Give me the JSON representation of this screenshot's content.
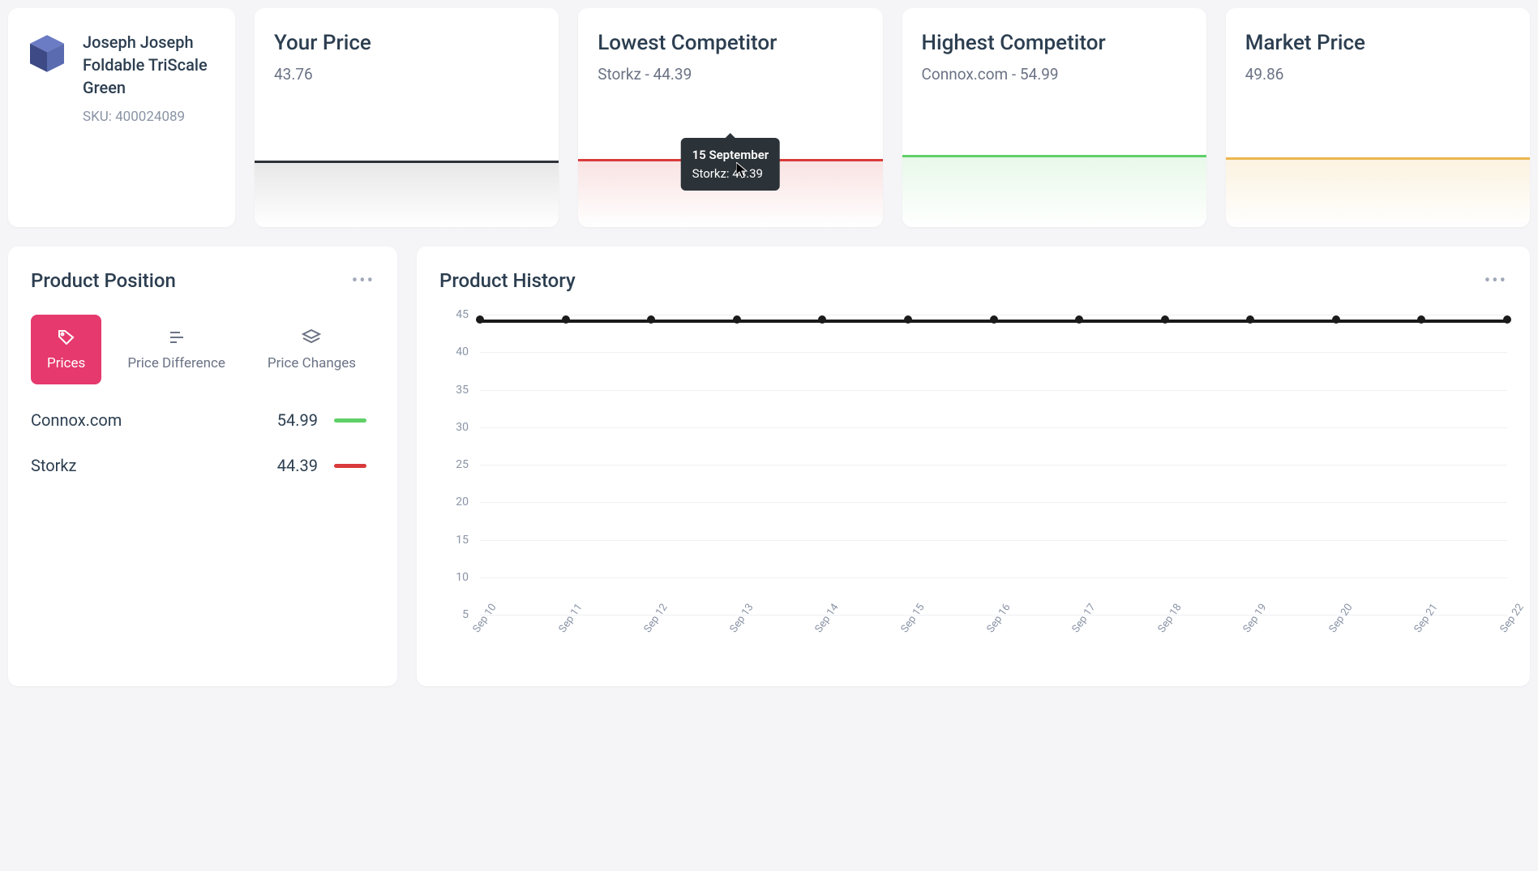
{
  "product": {
    "name": "Joseph Joseph Foldable TriScale Green",
    "sku_label": "SKU: 400024089",
    "icon_color_top": "#5a6bb0",
    "icon_color_side": "#3d4a85"
  },
  "price_cards": {
    "your_price": {
      "title": "Your Price",
      "value": "43.76",
      "line_color": "#2c3338",
      "fill_color": "rgba(120,120,120,0.18)",
      "line_top_pct": 32
    },
    "lowest": {
      "title": "Lowest Competitor",
      "value": "Storkz - 44.39",
      "line_color": "#d93a3a",
      "fill_color": "rgba(217,58,58,0.15)",
      "line_top_pct": 30
    },
    "highest": {
      "title": "Highest Competitor",
      "value": "Connox.com - 54.99",
      "line_color": "#5fd068",
      "fill_color": "rgba(95,208,104,0.15)",
      "line_top_pct": 26
    },
    "market": {
      "title": "Market Price",
      "value": "49.86",
      "line_color": "#eab64f",
      "fill_color": "rgba(234,182,79,0.18)",
      "line_top_pct": 28
    }
  },
  "tooltip": {
    "date": "15 September",
    "text": "Storkz: 44.39"
  },
  "position_panel": {
    "title": "Product Position",
    "tabs": {
      "prices": "Prices",
      "diff": "Price Difference",
      "changes": "Price Changes"
    },
    "active_tab_bg": "#e6396e",
    "rows": [
      {
        "name": "Connox.com",
        "price": "54.99",
        "swatch": "#5fd068"
      },
      {
        "name": "Storkz",
        "price": "44.39",
        "swatch": "#d93a3a"
      }
    ]
  },
  "history_panel": {
    "title": "Product History",
    "chart": {
      "type": "line",
      "y_ticks": [
        45,
        40,
        35,
        30,
        25,
        20,
        15,
        10,
        5
      ],
      "ylim": [
        5,
        45
      ],
      "x_labels": [
        "Sep 10",
        "Sep 11",
        "Sep 12",
        "Sep 13",
        "Sep 14",
        "Sep 15",
        "Sep 16",
        "Sep 17",
        "Sep 18",
        "Sep 19",
        "Sep 20",
        "Sep 21",
        "Sep 22"
      ],
      "series": {
        "color": "#1a1a1a",
        "line_width": 4,
        "marker_radius": 5,
        "values": [
          44.39,
          44.39,
          44.39,
          44.39,
          44.39,
          44.39,
          44.39,
          44.39,
          44.39,
          44.39,
          44.39,
          44.39,
          44.39
        ]
      },
      "grid_color": "#eef0f4",
      "label_fontsize": 14,
      "background_color": "#ffffff"
    }
  }
}
